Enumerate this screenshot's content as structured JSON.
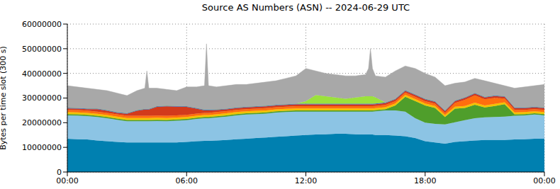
{
  "chart_data": {
    "type": "area",
    "title": "Source AS Numbers (ASN) -- 2024-06-29 UTC",
    "y_label": "Bytes per time slot (300 s)",
    "stacked": true,
    "grid": true,
    "x": [
      0,
      0.5,
      1,
      1.5,
      2,
      2.5,
      3,
      3.5,
      3.9,
      4,
      4.1,
      4.5,
      5,
      5.5,
      6,
      6.5,
      6.9,
      7,
      7.1,
      7.5,
      8,
      8.5,
      9,
      9.5,
      10,
      10.5,
      11,
      11.5,
      12,
      12.5,
      13,
      13.5,
      14,
      14.5,
      15,
      15.15,
      15.25,
      15.35,
      15.5,
      16,
      16.5,
      17,
      17.5,
      18,
      18.5,
      19,
      19.5,
      20,
      20.5,
      21,
      21.5,
      22,
      22.5,
      23,
      23.5,
      24
    ],
    "xlim": [
      0,
      24
    ],
    "xticks": [
      {
        "value": 0,
        "label": "00:00"
      },
      {
        "value": 6,
        "label": "06:00"
      },
      {
        "value": 12,
        "label": "12:00"
      },
      {
        "value": 18,
        "label": "18:00"
      },
      {
        "value": 24,
        "label": "00:00"
      }
    ],
    "ylim": [
      0,
      60000000
    ],
    "yticks": [
      0,
      10000000,
      20000000,
      30000000,
      40000000,
      50000000,
      60000000
    ],
    "series": [
      {
        "color": "#0080b0",
        "values": [
          13500000,
          13300000,
          13200000,
          12800000,
          12500000,
          12200000,
          12000000,
          12000000,
          12000000,
          12000000,
          12000000,
          12000000,
          12000000,
          12000000,
          12200000,
          12500000,
          12600000,
          12600000,
          12600000,
          12800000,
          13000000,
          13300000,
          13500000,
          13800000,
          14000000,
          14300000,
          14500000,
          14800000,
          15000000,
          15200000,
          15300000,
          15500000,
          15500000,
          15300000,
          15200000,
          15200000,
          15200000,
          15200000,
          15000000,
          15000000,
          14800000,
          14500000,
          13800000,
          12500000,
          12000000,
          11500000,
          12200000,
          12500000,
          12800000,
          13000000,
          13000000,
          13000000,
          13200000,
          13300000,
          13500000,
          13500000
        ]
      },
      {
        "color": "#8cc4e4",
        "values": [
          9500000,
          9600000,
          9500000,
          9500000,
          9300000,
          9000000,
          8600000,
          8600000,
          8600000,
          8600000,
          8600000,
          8700000,
          8600000,
          8800000,
          8800000,
          9000000,
          9200000,
          9200000,
          9200000,
          9300000,
          9500000,
          9700000,
          9800000,
          9700000,
          9700000,
          9800000,
          9800000,
          9700000,
          9500000,
          9300000,
          9200000,
          9000000,
          9000000,
          9200000,
          9300000,
          9300000,
          9300000,
          9300000,
          9600000,
          10000000,
          10200000,
          10000000,
          8000000,
          7500000,
          7500000,
          7800000,
          8000000,
          8500000,
          9000000,
          9200000,
          9300000,
          9500000,
          9600000,
          9700000,
          9800000,
          9500000
        ]
      },
      {
        "color": "#4f9e2b",
        "values": [
          500000,
          500000,
          500000,
          500000,
          500000,
          500000,
          500000,
          500000,
          500000,
          500000,
          500000,
          500000,
          500000,
          500000,
          500000,
          500000,
          500000,
          500000,
          500000,
          500000,
          500000,
          500000,
          500000,
          500000,
          500000,
          500000,
          500000,
          500000,
          500000,
          500000,
          500000,
          500000,
          500000,
          500000,
          500000,
          500000,
          500000,
          500000,
          500000,
          500000,
          2000000,
          6000000,
          7000000,
          7000000,
          6500000,
          3000000,
          5500000,
          5000000,
          5500000,
          4000000,
          4500000,
          5000000,
          600000,
          500000,
          500000,
          500000
        ]
      },
      {
        "color": "#f2c200",
        "values": [
          800000,
          800000,
          800000,
          800000,
          800000,
          800000,
          800000,
          800000,
          800000,
          800000,
          800000,
          800000,
          800000,
          800000,
          800000,
          800000,
          800000,
          800000,
          800000,
          800000,
          800000,
          800000,
          800000,
          800000,
          800000,
          800000,
          800000,
          800000,
          800000,
          800000,
          800000,
          800000,
          800000,
          800000,
          800000,
          800000,
          800000,
          800000,
          800000,
          800000,
          800000,
          800000,
          800000,
          800000,
          800000,
          800000,
          800000,
          800000,
          800000,
          800000,
          800000,
          800000,
          800000,
          800000,
          800000,
          800000
        ]
      },
      {
        "color": "#ff6e0e",
        "values": [
          900000,
          900000,
          900000,
          900000,
          900000,
          900000,
          900000,
          900000,
          900000,
          900000,
          900000,
          900000,
          900000,
          900000,
          900000,
          900000,
          900000,
          900000,
          900000,
          900000,
          900000,
          900000,
          900000,
          900000,
          900000,
          900000,
          900000,
          900000,
          900000,
          900000,
          900000,
          900000,
          900000,
          900000,
          900000,
          900000,
          900000,
          900000,
          900000,
          900000,
          900000,
          900000,
          900000,
          900000,
          900000,
          900000,
          1500000,
          2500000,
          3000000,
          2500000,
          2500000,
          1500000,
          1000000,
          900000,
          900000,
          900000
        ]
      },
      {
        "color": "#d23a1c",
        "values": [
          600000,
          600000,
          600000,
          1000000,
          800000,
          600000,
          800000,
          2000000,
          2500000,
          2500000,
          2500000,
          3500000,
          3800000,
          3500000,
          3200000,
          2000000,
          1000000,
          1000000,
          1000000,
          800000,
          700000,
          700000,
          700000,
          700000,
          700000,
          700000,
          700000,
          700000,
          700000,
          700000,
          700000,
          700000,
          700000,
          700000,
          700000,
          700000,
          700000,
          700000,
          700000,
          700000,
          700000,
          700000,
          700000,
          700000,
          700000,
          700000,
          700000,
          700000,
          700000,
          700000,
          700000,
          700000,
          700000,
          700000,
          700000,
          700000
        ]
      },
      {
        "color": "#4466cc",
        "values": [
          300000,
          300000,
          300000,
          300000,
          300000,
          300000,
          300000,
          300000,
          300000,
          300000,
          300000,
          300000,
          300000,
          300000,
          300000,
          300000,
          300000,
          300000,
          300000,
          300000,
          300000,
          300000,
          300000,
          300000,
          300000,
          300000,
          300000,
          300000,
          300000,
          300000,
          300000,
          300000,
          300000,
          300000,
          300000,
          300000,
          300000,
          300000,
          300000,
          300000,
          300000,
          300000,
          300000,
          300000,
          300000,
          300000,
          300000,
          300000,
          300000,
          300000,
          300000,
          300000,
          300000,
          300000,
          300000,
          300000
        ]
      },
      {
        "color": "#9be23c",
        "values": [
          0,
          0,
          0,
          0,
          0,
          0,
          0,
          0,
          0,
          0,
          0,
          0,
          0,
          0,
          0,
          0,
          0,
          0,
          0,
          0,
          0,
          0,
          0,
          0,
          0,
          0,
          0,
          0,
          1000000,
          3500000,
          3000000,
          2500000,
          2000000,
          2500000,
          3000000,
          3000000,
          3000000,
          3000000,
          2500000,
          0,
          0,
          0,
          0,
          0,
          0,
          0,
          0,
          0,
          0,
          0,
          0,
          0,
          0,
          0,
          0,
          0
        ]
      },
      {
        "color": "#a8a8a8",
        "values": [
          8900000,
          8500000,
          8200000,
          7700000,
          7900000,
          7700000,
          7100000,
          7900000,
          8400000,
          15400000,
          8400000,
          7300000,
          6600000,
          6200000,
          7800000,
          8500000,
          9700000,
          26700000,
          9700000,
          9100000,
          9300000,
          9300000,
          9000000,
          9300000,
          9600000,
          9700000,
          10500000,
          11300000,
          13300000,
          9800000,
          9300000,
          9300000,
          9300000,
          8800000,
          8800000,
          11300000,
          19300000,
          11300000,
          8700000,
          10300000,
          11300000,
          9800000,
          10500000,
          10300000,
          9800000,
          10000000,
          7000000,
          6200000,
          5900000,
          6500000,
          4900000,
          4200000,
          7800000,
          8300000,
          8500000,
          9300000
        ]
      }
    ]
  }
}
